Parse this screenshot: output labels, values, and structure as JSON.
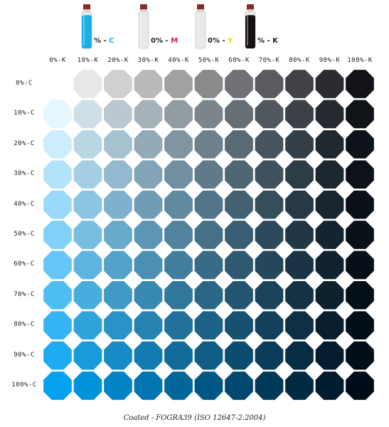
{
  "inks": [
    {
      "name": "cyan-bottle-icon",
      "text_pre": "% - ",
      "text_hl": "C",
      "hl_color": "#1aa8dd",
      "fill": "#1ab0e6",
      "level": 0.9
    },
    {
      "name": "magenta-bottle-icon",
      "text_pre": "0% - ",
      "text_hl": "M",
      "hl_color": "#e0157a",
      "fill": "#e6e6e6",
      "level": 0.0
    },
    {
      "name": "yellow-bottle-icon",
      "text_pre": "0% - ",
      "text_hl": "Y",
      "hl_color": "#e8d400",
      "fill": "#ececec",
      "level": 0.0
    },
    {
      "name": "black-bottle-icon",
      "text_pre": "% - ",
      "text_hl": "K",
      "hl_color": "#222222",
      "fill": "#151014",
      "level": 0.9
    }
  ],
  "chart_data": {
    "type": "heatmap",
    "x_label_values": [
      "0%-K",
      "10%-K",
      "20%-K",
      "30%-K",
      "40%-K",
      "50%-K",
      "60%-K",
      "70%-K",
      "80%-K",
      "90%-K",
      "100%-K"
    ],
    "y_label_values": [
      "0%-C",
      "10%-C",
      "20%-C",
      "30%-C",
      "40%-C",
      "50%-C",
      "60%-C",
      "70%-C",
      "80%-C",
      "90%-C",
      "100%-C"
    ],
    "k_values": [
      0,
      10,
      20,
      30,
      40,
      50,
      60,
      70,
      80,
      90,
      100
    ],
    "c_values": [
      0,
      10,
      20,
      30,
      40,
      50,
      60,
      70,
      80,
      90,
      100
    ],
    "cyan_color": "#00a0e3"
  },
  "caption": "Coated - FOGRA39 (ISO 12647-2:2004)"
}
